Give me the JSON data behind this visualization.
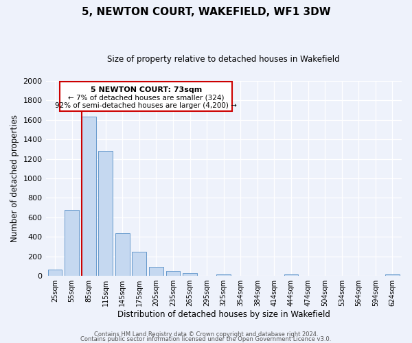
{
  "title": "5, NEWTON COURT, WAKEFIELD, WF1 3DW",
  "subtitle": "Size of property relative to detached houses in Wakefield",
  "xlabel": "Distribution of detached houses by size in Wakefield",
  "ylabel": "Number of detached properties",
  "bar_labels": [
    "25sqm",
    "55sqm",
    "85sqm",
    "115sqm",
    "145sqm",
    "175sqm",
    "205sqm",
    "235sqm",
    "265sqm",
    "295sqm",
    "325sqm",
    "354sqm",
    "384sqm",
    "414sqm",
    "444sqm",
    "474sqm",
    "504sqm",
    "534sqm",
    "564sqm",
    "594sqm",
    "624sqm"
  ],
  "bar_values": [
    65,
    680,
    1630,
    1280,
    440,
    250,
    90,
    52,
    30,
    0,
    18,
    0,
    0,
    0,
    15,
    0,
    0,
    0,
    0,
    0,
    15
  ],
  "bar_color": "#c5d8f0",
  "bar_edge_color": "#6699cc",
  "ylim": [
    0,
    2000
  ],
  "yticks": [
    0,
    200,
    400,
    600,
    800,
    1000,
    1200,
    1400,
    1600,
    1800,
    2000
  ],
  "annotation_title": "5 NEWTON COURT: 73sqm",
  "annotation_line1": "← 7% of detached houses are smaller (324)",
  "annotation_line2": "92% of semi-detached houses are larger (4,200) →",
  "annotation_box_color": "#ffffff",
  "annotation_box_edge_color": "#cc0000",
  "footer1": "Contains HM Land Registry data © Crown copyright and database right 2024.",
  "footer2": "Contains public sector information licensed under the Open Government Licence v3.0.",
  "background_color": "#eef2fb",
  "plot_background_color": "#eef2fb"
}
